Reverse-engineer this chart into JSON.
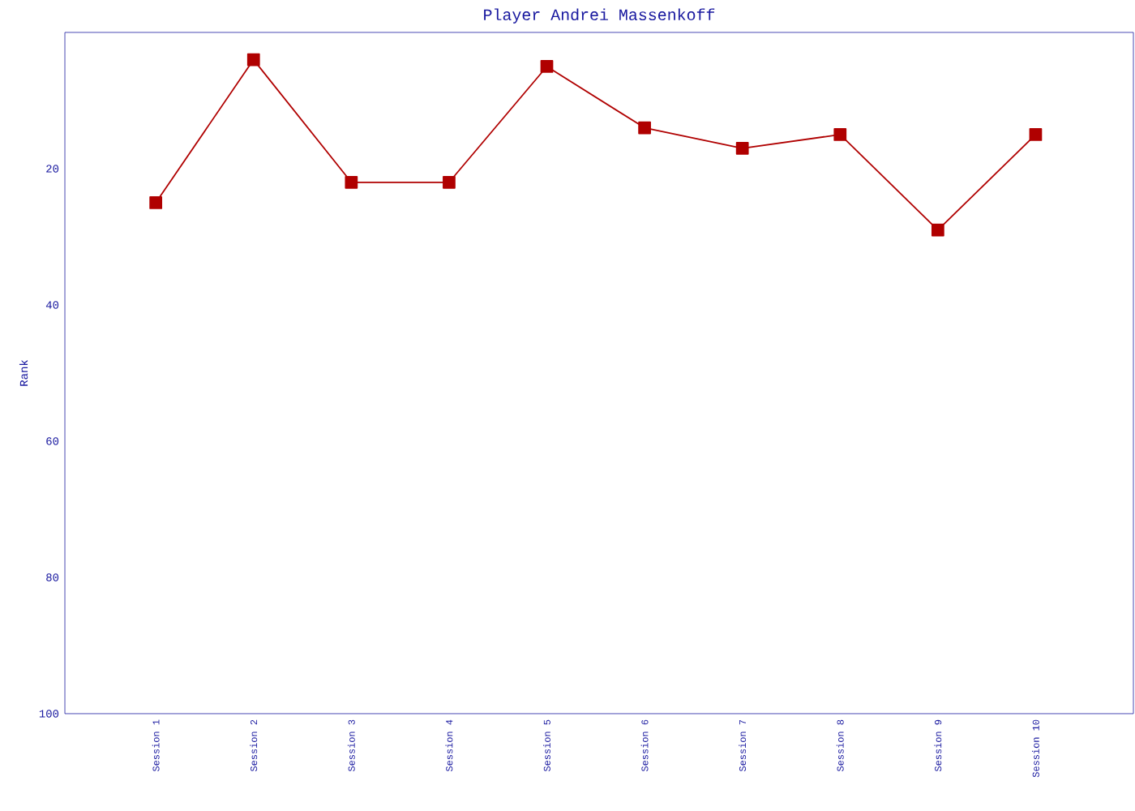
{
  "chart_data": {
    "type": "line",
    "title": "Player Andrei Massenkoff",
    "ylabel": "Rank",
    "categories": [
      "Session 1",
      "Session 2",
      "Session 3",
      "Session 4",
      "Session 5",
      "Session 6",
      "Session 7",
      "Session 8",
      "Session 9",
      "Session 10"
    ],
    "series": [
      {
        "color": "#b00000",
        "values": [
          25,
          4,
          22,
          22,
          5,
          14,
          17,
          15,
          29,
          15
        ]
      }
    ],
    "ylim": [
      100,
      0
    ],
    "yticks": [
      20,
      40,
      60,
      80,
      100
    ],
    "marker": "square"
  }
}
